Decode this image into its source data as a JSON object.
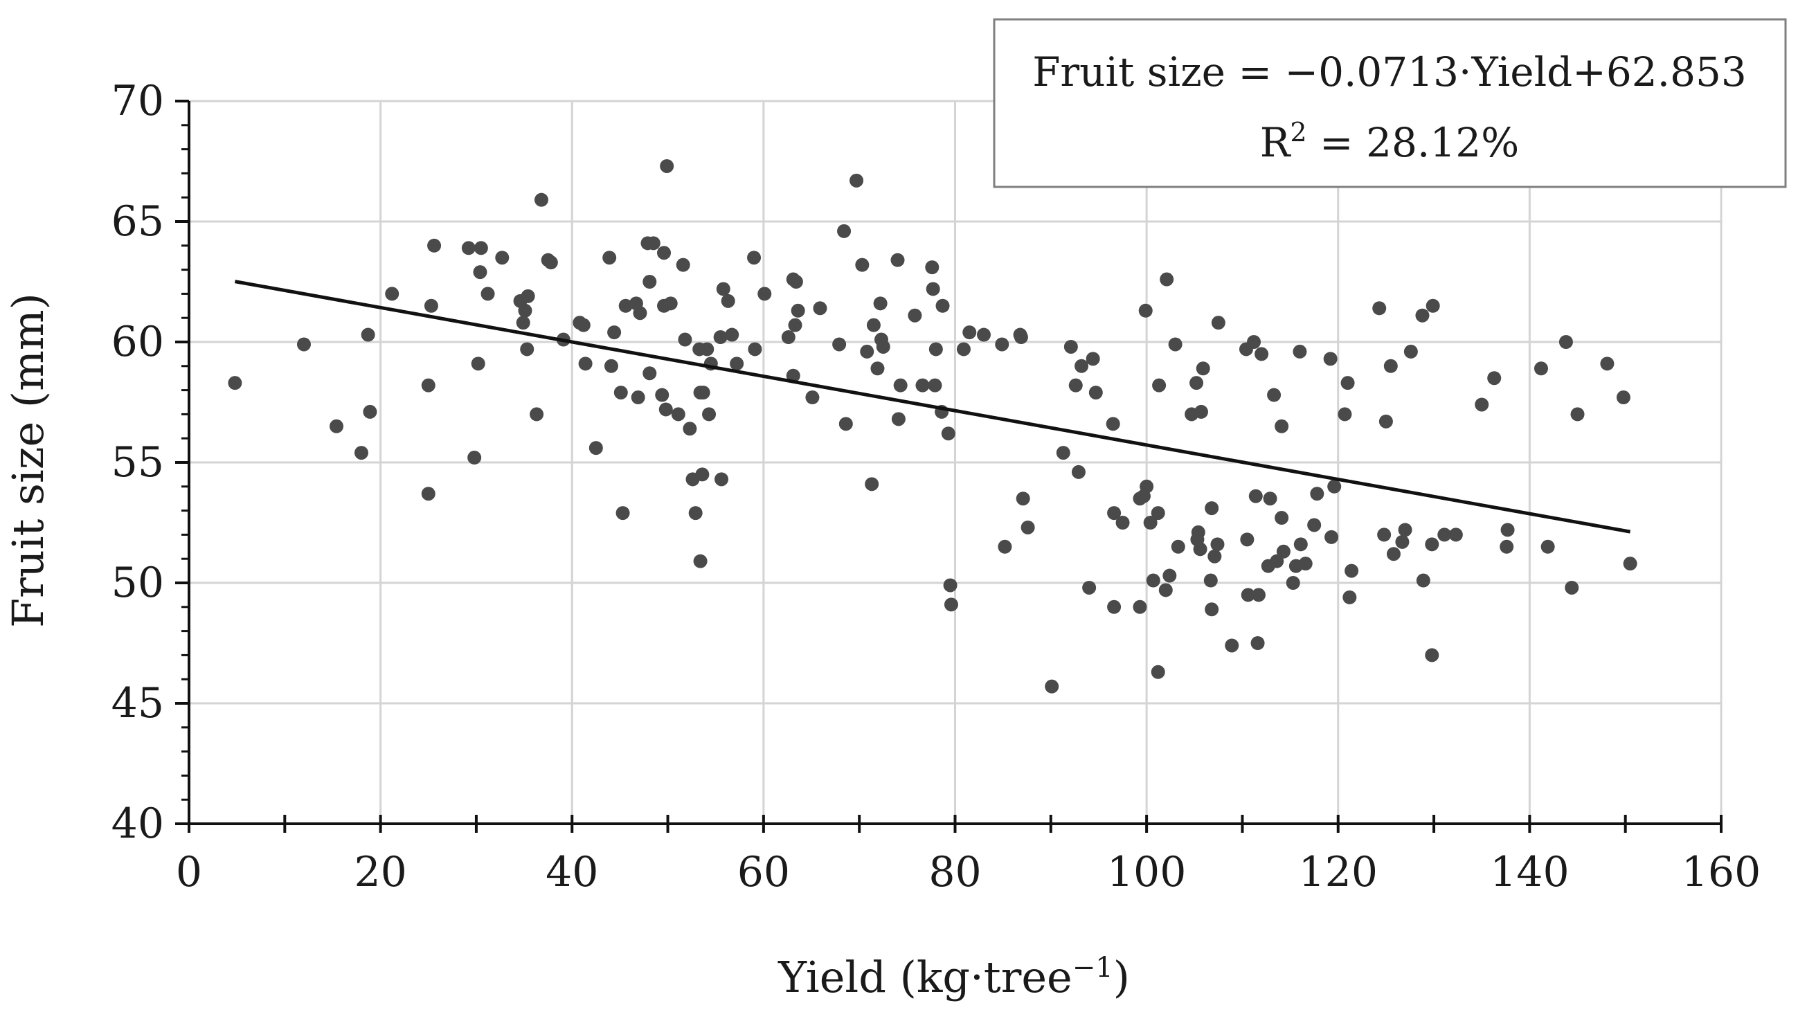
{
  "chart_data": {
    "type": "scatter",
    "title": "",
    "xlabel": "Yield (kg·tree",
    "xlabel_sup": "−1",
    "xlabel_end": ")",
    "ylabel": "Fruit size (mm)",
    "xlim": [
      0,
      160
    ],
    "ylim": [
      40,
      70
    ],
    "xticks": [
      0,
      20,
      40,
      60,
      80,
      100,
      120,
      140,
      160
    ],
    "yticks": [
      40,
      45,
      50,
      55,
      60,
      65,
      70
    ],
    "grid": true,
    "colors": {
      "points": "#4a4a4a",
      "trendline": "#111111",
      "grid": "#d4d4d4",
      "axis": "#111111",
      "box_border": "#7f7f7f"
    },
    "trendline": {
      "slope": -0.0713,
      "intercept": 62.853,
      "x_range": [
        4.8,
        150.5
      ]
    },
    "annotation": {
      "equation": "Fruit size = −0.0713·Yield+62.853",
      "r2_prefix": "R",
      "r2_sup": "2",
      "r2_value": " = 28.12%",
      "position": "top-right"
    },
    "points": [
      [
        4.8,
        58.3
      ],
      [
        12,
        59.9
      ],
      [
        15.4,
        56.5
      ],
      [
        18,
        55.4
      ],
      [
        18.7,
        60.3
      ],
      [
        18.9,
        57.1
      ],
      [
        21.2,
        62
      ],
      [
        25,
        53.7
      ],
      [
        25,
        58.2
      ],
      [
        25.3,
        61.5
      ],
      [
        25.6,
        64
      ],
      [
        29.2,
        63.9
      ],
      [
        29.8,
        55.2
      ],
      [
        30.2,
        59.1
      ],
      [
        30.4,
        62.9
      ],
      [
        30.5,
        63.9
      ],
      [
        31.2,
        62
      ],
      [
        32.7,
        63.5
      ],
      [
        34.6,
        61.7
      ],
      [
        34.9,
        60.8
      ],
      [
        35.1,
        61.3
      ],
      [
        35.3,
        59.7
      ],
      [
        35.4,
        61.9
      ],
      [
        36.3,
        57
      ],
      [
        36.8,
        65.9
      ],
      [
        37.5,
        63.4
      ],
      [
        37.8,
        63.3
      ],
      [
        39.1,
        60.1
      ],
      [
        40.8,
        60.8
      ],
      [
        41.2,
        60.7
      ],
      [
        41.4,
        59.1
      ],
      [
        42.5,
        55.6
      ],
      [
        43.9,
        63.5
      ],
      [
        44.1,
        59
      ],
      [
        44.4,
        60.4
      ],
      [
        45.1,
        57.9
      ],
      [
        45.3,
        52.9
      ],
      [
        45.6,
        61.5
      ],
      [
        46.7,
        61.6
      ],
      [
        46.9,
        57.7
      ],
      [
        47.1,
        61.2
      ],
      [
        47.9,
        64.1
      ],
      [
        48.1,
        62.5
      ],
      [
        48.1,
        58.7
      ],
      [
        48.5,
        64.1
      ],
      [
        49.4,
        57.8
      ],
      [
        49.6,
        63.7
      ],
      [
        49.6,
        61.5
      ],
      [
        49.8,
        57.2
      ],
      [
        49.9,
        67.3
      ],
      [
        50.3,
        61.6
      ],
      [
        51.1,
        57
      ],
      [
        51.6,
        63.2
      ],
      [
        51.8,
        60.1
      ],
      [
        52.3,
        56.4
      ],
      [
        52.6,
        54.3
      ],
      [
        52.9,
        52.9
      ],
      [
        53.3,
        59.7
      ],
      [
        53.4,
        57.9
      ],
      [
        53.4,
        50.9
      ],
      [
        53.6,
        54.5
      ],
      [
        53.7,
        57.9
      ],
      [
        54.1,
        59.7
      ],
      [
        54.3,
        57
      ],
      [
        54.5,
        59.1
      ],
      [
        55.5,
        60.2
      ],
      [
        55.6,
        54.3
      ],
      [
        55.8,
        62.2
      ],
      [
        56.3,
        61.7
      ],
      [
        56.7,
        60.3
      ],
      [
        57.2,
        59.1
      ],
      [
        59,
        63.5
      ],
      [
        59.1,
        59.7
      ],
      [
        60.1,
        62
      ],
      [
        62.6,
        60.2
      ],
      [
        63.1,
        62.6
      ],
      [
        63.1,
        58.6
      ],
      [
        63.3,
        60.7
      ],
      [
        63.4,
        62.5
      ],
      [
        63.6,
        61.3
      ],
      [
        65.1,
        57.7
      ],
      [
        65.9,
        61.4
      ],
      [
        67.9,
        59.9
      ],
      [
        68.4,
        64.6
      ],
      [
        68.6,
        56.6
      ],
      [
        69.7,
        66.7
      ],
      [
        70.3,
        63.2
      ],
      [
        70.8,
        59.6
      ],
      [
        71.3,
        54.1
      ],
      [
        71.5,
        60.7
      ],
      [
        71.9,
        58.9
      ],
      [
        72.2,
        61.6
      ],
      [
        72.3,
        60.1
      ],
      [
        72.5,
        59.8
      ],
      [
        74,
        63.4
      ],
      [
        74.1,
        56.8
      ],
      [
        74.3,
        58.2
      ],
      [
        75.8,
        61.1
      ],
      [
        76.6,
        58.2
      ],
      [
        77.6,
        63.1
      ],
      [
        77.7,
        62.2
      ],
      [
        77.9,
        58.2
      ],
      [
        78,
        59.7
      ],
      [
        78.6,
        57.1
      ],
      [
        78.7,
        61.5
      ],
      [
        79.3,
        56.2
      ],
      [
        79.5,
        49.9
      ],
      [
        79.6,
        49.1
      ],
      [
        80.9,
        59.7
      ],
      [
        81.5,
        60.4
      ],
      [
        83,
        60.3
      ],
      [
        84.9,
        59.9
      ],
      [
        85.2,
        51.5
      ],
      [
        86.8,
        60.3
      ],
      [
        86.9,
        60.2
      ],
      [
        87.1,
        53.5
      ],
      [
        87.6,
        52.3
      ],
      [
        90.1,
        45.7
      ],
      [
        91.3,
        55.4
      ],
      [
        92.1,
        59.8
      ],
      [
        92.6,
        58.2
      ],
      [
        92.9,
        54.6
      ],
      [
        93.2,
        59
      ],
      [
        94,
        49.8
      ],
      [
        94.4,
        59.3
      ],
      [
        94.7,
        57.9
      ],
      [
        96.5,
        56.6
      ],
      [
        96.6,
        49
      ],
      [
        96.6,
        52.9
      ],
      [
        97.5,
        52.5
      ],
      [
        99.3,
        49
      ],
      [
        99.3,
        53.5
      ],
      [
        99.7,
        53.6
      ],
      [
        99.9,
        61.3
      ],
      [
        100,
        54
      ],
      [
        100.4,
        52.5
      ],
      [
        100.7,
        50.1
      ],
      [
        101.2,
        52.9
      ],
      [
        101.2,
        46.3
      ],
      [
        101.3,
        58.2
      ],
      [
        102,
        49.7
      ],
      [
        102.1,
        62.6
      ],
      [
        102.4,
        50.3
      ],
      [
        103,
        59.9
      ],
      [
        103.3,
        51.5
      ],
      [
        104.7,
        57
      ],
      [
        105.2,
        58.3
      ],
      [
        105.3,
        51.8
      ],
      [
        105.4,
        52.1
      ],
      [
        105.6,
        51.4
      ],
      [
        105.7,
        57.1
      ],
      [
        105.9,
        58.9
      ],
      [
        106.7,
        50.1
      ],
      [
        106.8,
        53.1
      ],
      [
        106.8,
        48.9
      ],
      [
        107.1,
        51.1
      ],
      [
        107.4,
        51.6
      ],
      [
        107.5,
        60.8
      ],
      [
        108.9,
        47.4
      ],
      [
        110.4,
        59.7
      ],
      [
        110.5,
        51.8
      ],
      [
        110.6,
        49.5
      ],
      [
        111.2,
        60
      ],
      [
        111.4,
        53.6
      ],
      [
        111.6,
        47.5
      ],
      [
        111.7,
        49.5
      ],
      [
        112,
        59.5
      ],
      [
        112.7,
        50.7
      ],
      [
        112.9,
        53.5
      ],
      [
        113.3,
        57.8
      ],
      [
        113.6,
        50.9
      ],
      [
        114.1,
        52.7
      ],
      [
        114.1,
        56.5
      ],
      [
        114.3,
        51.3
      ],
      [
        115.3,
        50
      ],
      [
        115.6,
        50.7
      ],
      [
        116,
        59.6
      ],
      [
        116.1,
        51.6
      ],
      [
        116.6,
        50.8
      ],
      [
        117.5,
        52.4
      ],
      [
        117.8,
        53.7
      ],
      [
        119.2,
        59.3
      ],
      [
        119.3,
        51.9
      ],
      [
        119.6,
        54
      ],
      [
        120.7,
        57
      ],
      [
        121,
        58.3
      ],
      [
        121.2,
        49.4
      ],
      [
        121.4,
        50.5
      ],
      [
        124.3,
        61.4
      ],
      [
        124.8,
        52
      ],
      [
        125,
        56.7
      ],
      [
        125.5,
        59
      ],
      [
        125.8,
        51.2
      ],
      [
        126.7,
        51.7
      ],
      [
        127,
        52.2
      ],
      [
        127.6,
        59.6
      ],
      [
        128.8,
        61.1
      ],
      [
        128.9,
        50.1
      ],
      [
        129.8,
        47
      ],
      [
        129.8,
        51.6
      ],
      [
        129.9,
        61.5
      ],
      [
        131.1,
        52
      ],
      [
        132.3,
        52
      ],
      [
        135,
        57.4
      ],
      [
        136.3,
        58.5
      ],
      [
        137.6,
        51.5
      ],
      [
        137.7,
        52.2
      ],
      [
        141.2,
        58.9
      ],
      [
        141.9,
        51.5
      ],
      [
        143.8,
        60
      ],
      [
        144.4,
        49.8
      ],
      [
        145,
        57
      ],
      [
        148.1,
        59.1
      ],
      [
        149.8,
        57.7
      ],
      [
        150.5,
        50.8
      ]
    ]
  }
}
